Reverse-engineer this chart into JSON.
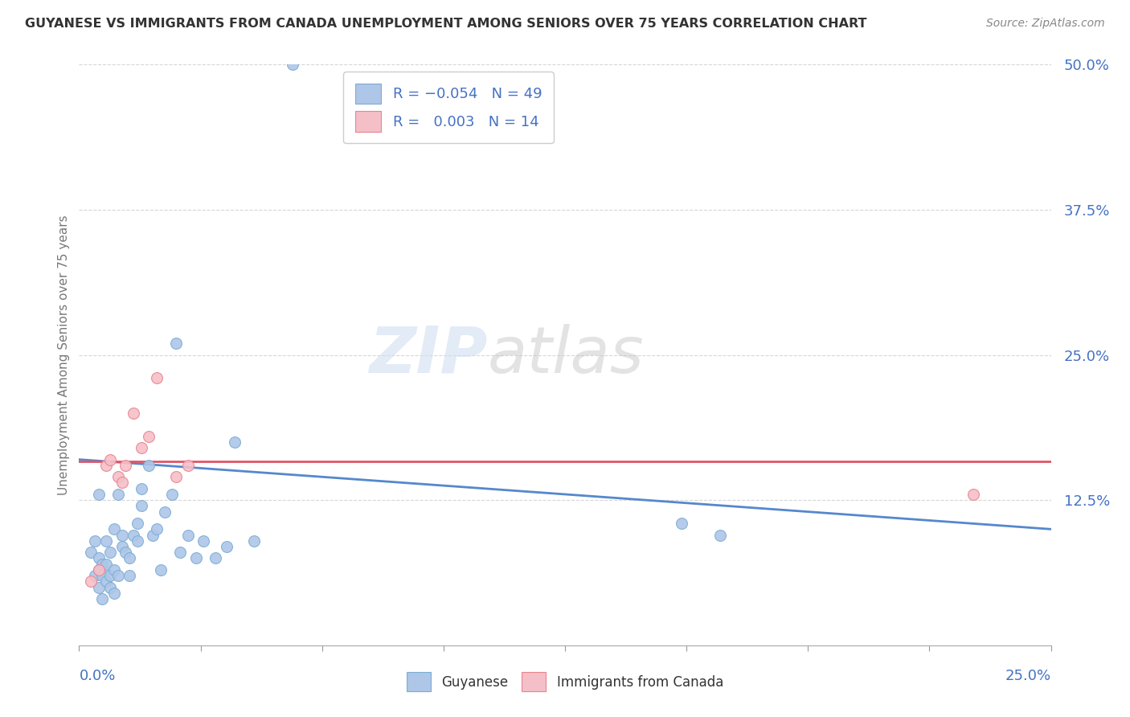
{
  "title": "GUYANESE VS IMMIGRANTS FROM CANADA UNEMPLOYMENT AMONG SENIORS OVER 75 YEARS CORRELATION CHART",
  "source": "Source: ZipAtlas.com",
  "ylabel": "Unemployment Among Seniors over 75 years",
  "xlim": [
    0,
    0.25
  ],
  "ylim": [
    0,
    0.5
  ],
  "yticks": [
    0.0,
    0.125,
    0.25,
    0.375,
    0.5
  ],
  "ytick_labels": [
    "",
    "12.5%",
    "25.0%",
    "37.5%",
    "50.0%"
  ],
  "blue_color": "#aec6e8",
  "blue_edge": "#7badd4",
  "pink_color": "#f5bfc8",
  "pink_edge": "#e8848e",
  "trend_blue": "#5588cc",
  "trend_pink": "#e05565",
  "watermark_zip": "ZIP",
  "watermark_atlas": "atlas",
  "blue_x": [
    0.003,
    0.004,
    0.004,
    0.005,
    0.005,
    0.005,
    0.005,
    0.006,
    0.006,
    0.006,
    0.007,
    0.007,
    0.007,
    0.008,
    0.008,
    0.008,
    0.009,
    0.009,
    0.009,
    0.01,
    0.01,
    0.011,
    0.011,
    0.012,
    0.013,
    0.013,
    0.014,
    0.015,
    0.015,
    0.016,
    0.016,
    0.018,
    0.019,
    0.02,
    0.021,
    0.022,
    0.024,
    0.025,
    0.026,
    0.028,
    0.03,
    0.032,
    0.035,
    0.038,
    0.04,
    0.045,
    0.055,
    0.155,
    0.165
  ],
  "blue_y": [
    0.08,
    0.06,
    0.09,
    0.05,
    0.065,
    0.075,
    0.13,
    0.04,
    0.06,
    0.07,
    0.055,
    0.07,
    0.09,
    0.05,
    0.06,
    0.08,
    0.045,
    0.065,
    0.1,
    0.06,
    0.13,
    0.085,
    0.095,
    0.08,
    0.06,
    0.075,
    0.095,
    0.09,
    0.105,
    0.12,
    0.135,
    0.155,
    0.095,
    0.1,
    0.065,
    0.115,
    0.13,
    0.26,
    0.08,
    0.095,
    0.075,
    0.09,
    0.075,
    0.085,
    0.175,
    0.09,
    0.5,
    0.105,
    0.095
  ],
  "pink_x": [
    0.003,
    0.005,
    0.007,
    0.008,
    0.01,
    0.011,
    0.012,
    0.014,
    0.016,
    0.018,
    0.02,
    0.025,
    0.028,
    0.23
  ],
  "pink_y": [
    0.055,
    0.065,
    0.155,
    0.16,
    0.145,
    0.14,
    0.155,
    0.2,
    0.17,
    0.18,
    0.23,
    0.145,
    0.155,
    0.13
  ],
  "trend_blue_x0": 0.0,
  "trend_blue_y0": 0.16,
  "trend_blue_x1": 0.25,
  "trend_blue_y1": 0.1,
  "trend_pink_y": 0.158
}
